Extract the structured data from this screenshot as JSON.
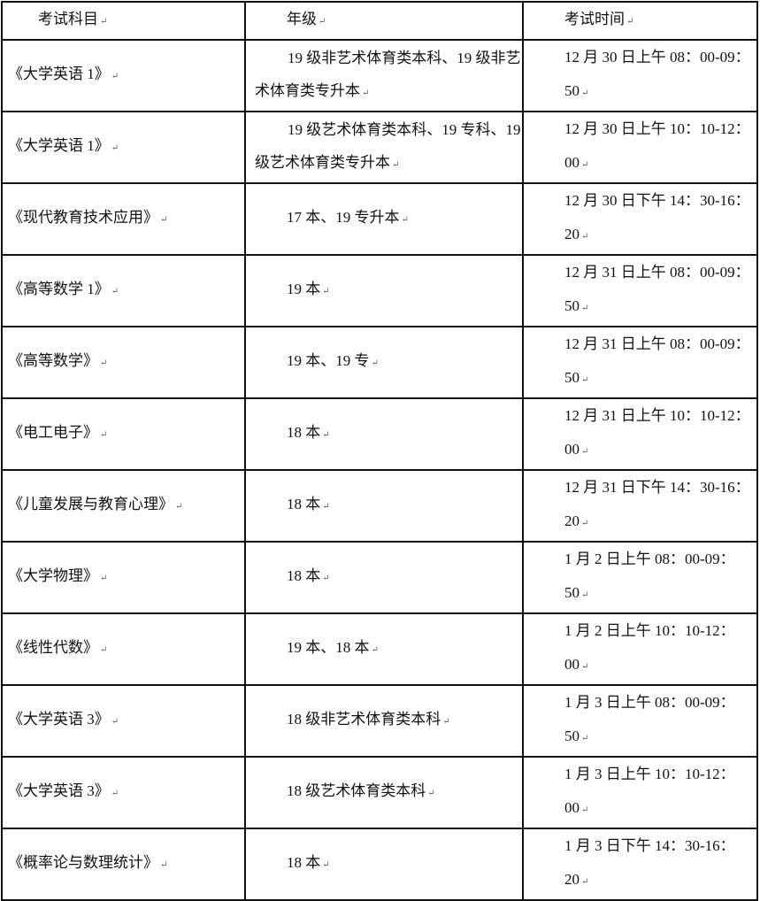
{
  "table": {
    "headers": [
      "考试科目",
      "年级",
      "考试时间"
    ],
    "rows": [
      {
        "subject": "《大学英语 1》",
        "grade": "19 级非艺术体育类本科、19 级非艺术体育类专升本",
        "time": "12 月 30 日上午 08：00-09：50"
      },
      {
        "subject": "《大学英语 1》",
        "grade": "19 级艺术体育类本科、19 专科、19 级艺术体育类专升本",
        "time": "12 月 30 日上午 10：10-12：00"
      },
      {
        "subject": "《现代教育技术应用》",
        "grade": "17 本、19 专升本",
        "time": "12 月 30 日下午 14：30-16：20"
      },
      {
        "subject": "《高等数学 1》",
        "grade": "19 本",
        "time": "12 月 31 日上午 08：00-09：50"
      },
      {
        "subject": "《高等数学》",
        "grade": "19 本、19 专",
        "time": "12 月 31 日上午 08：00-09：50"
      },
      {
        "subject": "《电工电子》",
        "grade": "18 本",
        "time": "12 月 31 日上午 10：10-12：00"
      },
      {
        "subject": "《儿童发展与教育心理》",
        "grade": "18 本",
        "time": "12 月 31 日下午 14：30-16：20"
      },
      {
        "subject": "《大学物理》",
        "grade": "18 本",
        "time": "1 月 2 日上午 08：00-09：50"
      },
      {
        "subject": "《线性代数》",
        "grade": "19 本、18 本",
        "time": "1 月 2 日上午 10：10-12：00"
      },
      {
        "subject": "《大学英语 3》",
        "grade": "18 级非艺术体育类本科",
        "time": "1 月 3 日上午 08：00-09：50"
      },
      {
        "subject": "《大学英语 3》",
        "grade": "18 级艺术体育类本科",
        "time": "1 月 3 日上午 10：10-12：00"
      },
      {
        "subject": "《概率论与数理统计》",
        "grade": "18 本",
        "time": "1 月 3 日下午 14：30-16：20"
      }
    ]
  }
}
